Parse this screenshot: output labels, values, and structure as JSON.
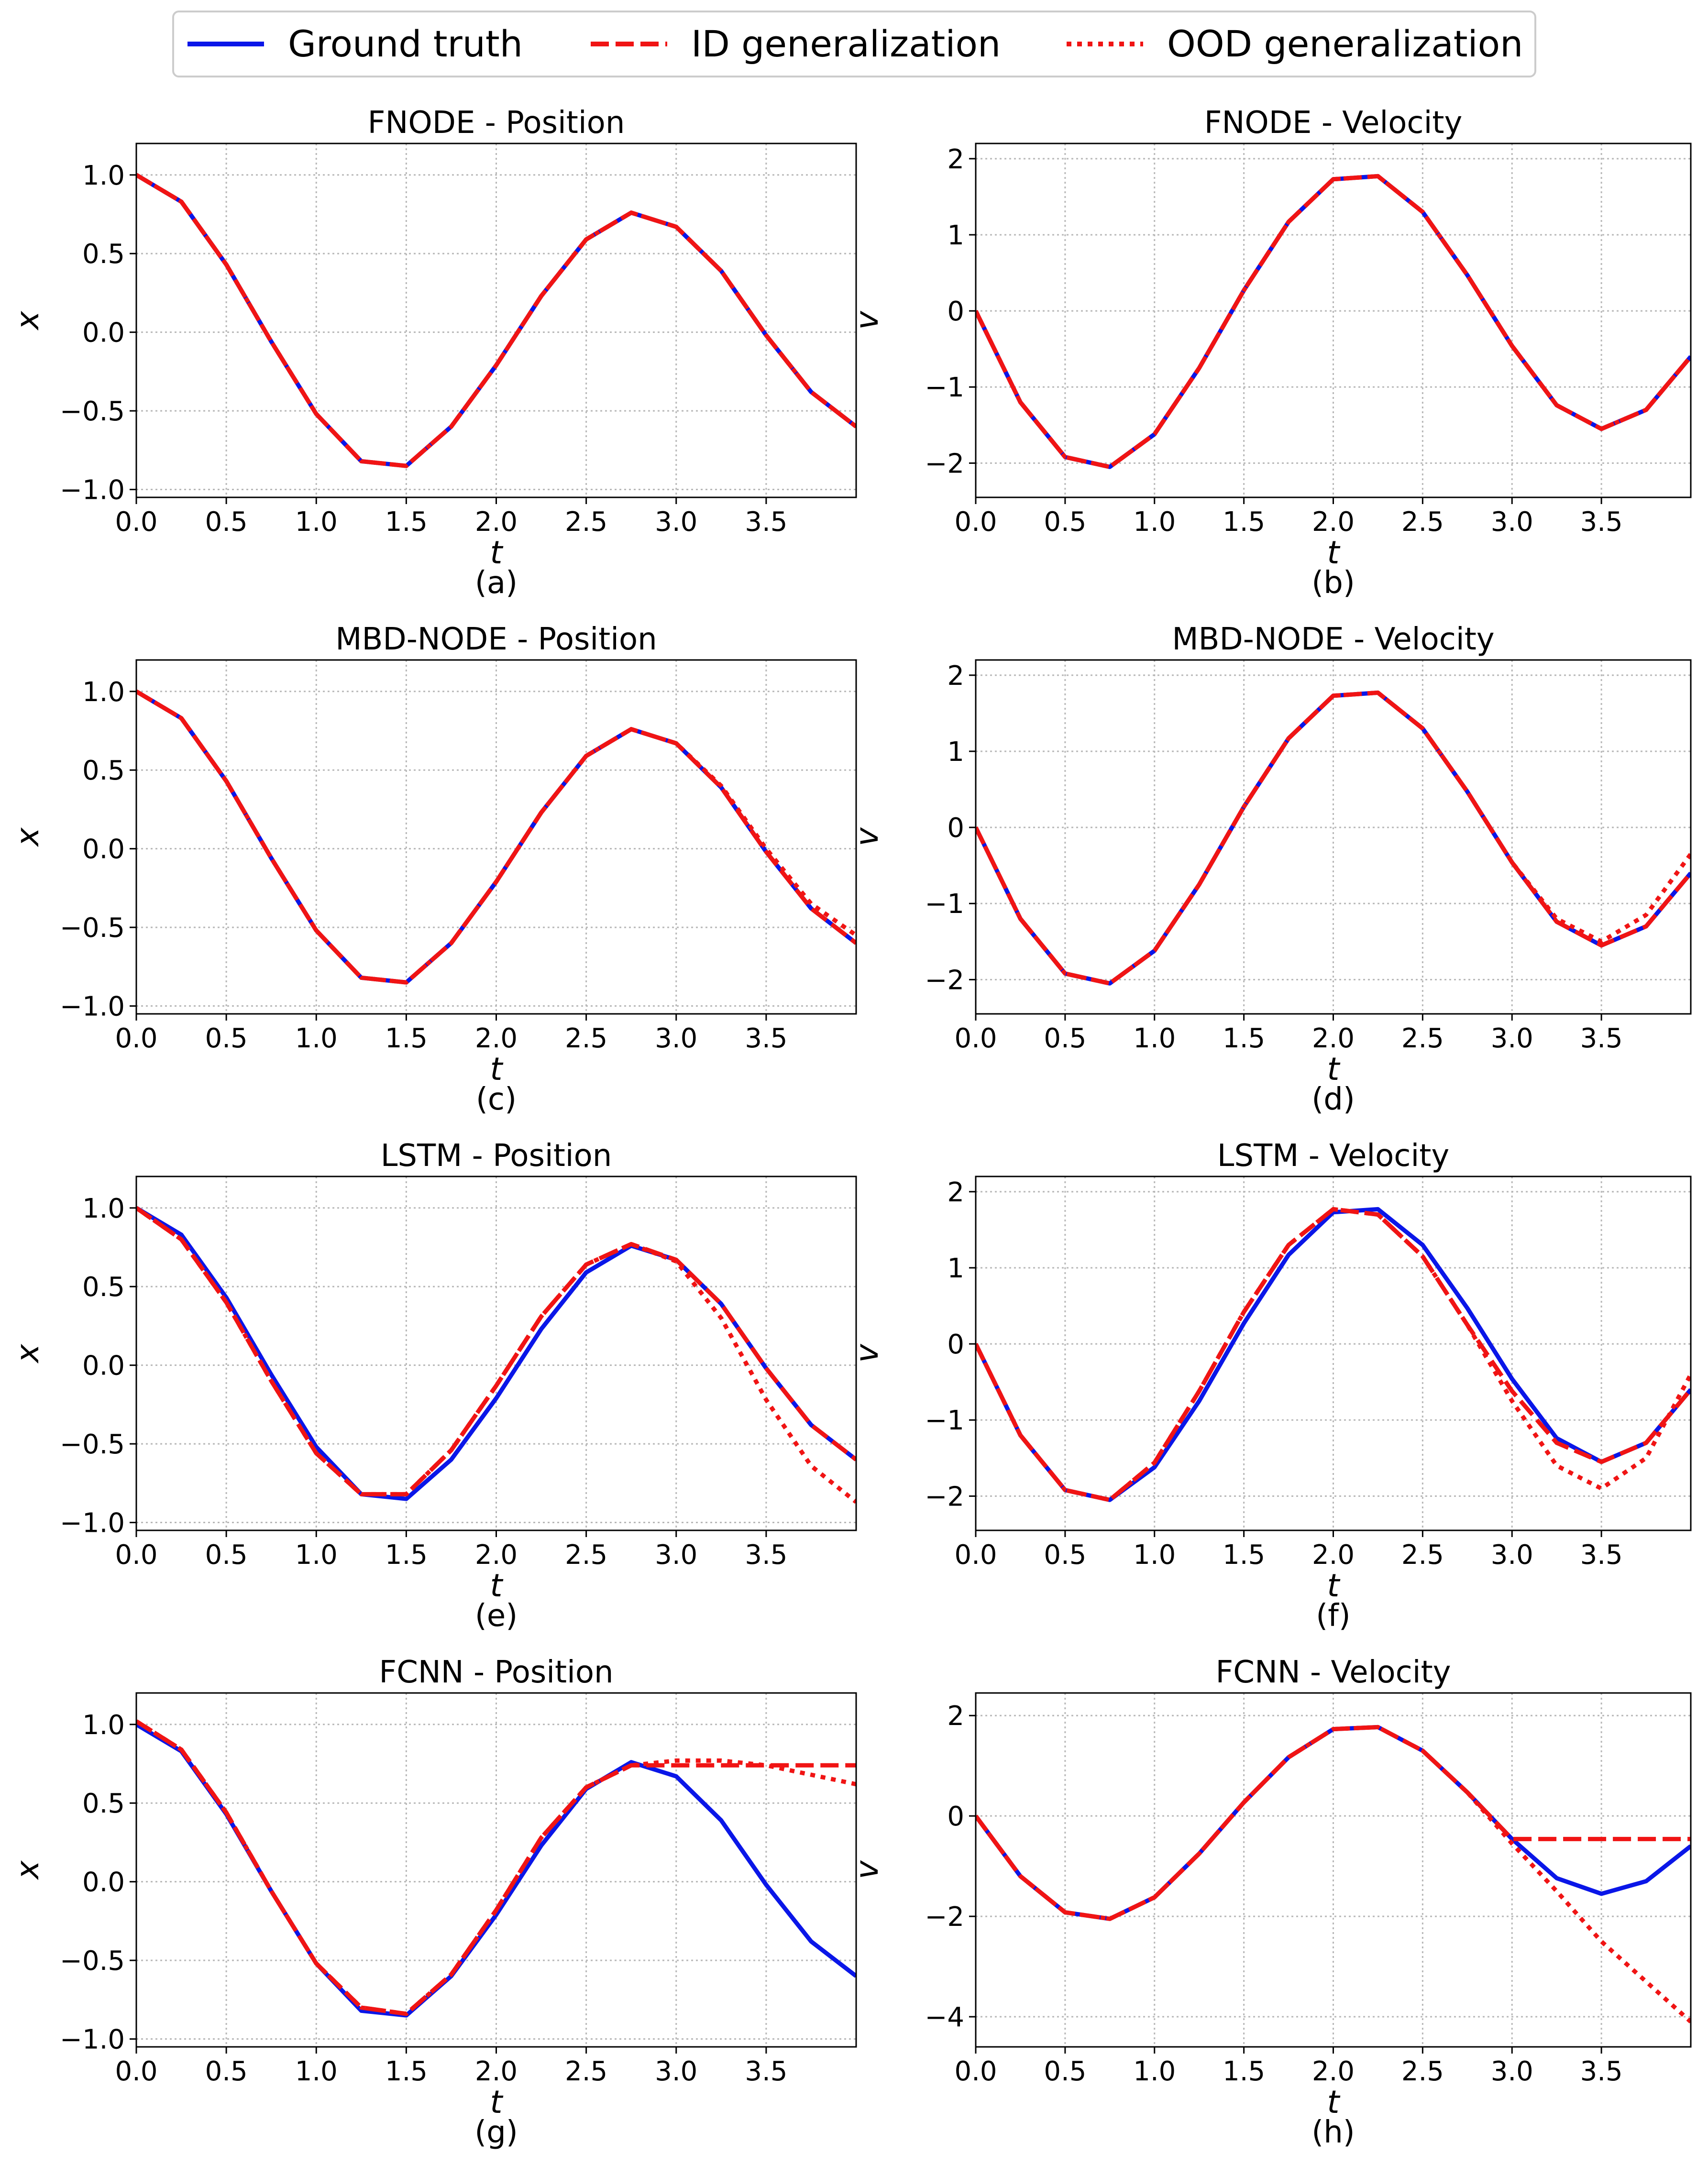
{
  "legend": {
    "ground_truth": "Ground truth",
    "id": "ID generalization",
    "ood": "OOD generalization"
  },
  "colors": {
    "ground_truth": "#0a16e8",
    "prediction": "#f01414",
    "grid": "#b8b8b8"
  },
  "chart_data": [
    {
      "type": "line",
      "title": "FNODE - Position",
      "caption": "(a)",
      "xlabel": "t",
      "ylabel": "x",
      "xlim": [
        0,
        4
      ],
      "ylim": [
        -1.05,
        1.2
      ],
      "xticks": [
        0,
        0.5,
        1,
        1.5,
        2,
        2.5,
        3,
        3.5
      ],
      "yticks": [
        -1,
        -0.5,
        0,
        0.5,
        1
      ],
      "xtick_labels": [
        "0.0",
        "0.5",
        "1.0",
        "1.5",
        "2.0",
        "2.5",
        "3.0",
        "3.5"
      ],
      "ytick_labels": [
        "−1.0",
        "−0.5",
        "0.0",
        "0.5",
        "1.0"
      ],
      "x": [
        0,
        0.25,
        0.5,
        0.75,
        1,
        1.25,
        1.5,
        1.75,
        2,
        2.25,
        2.5,
        2.75,
        3,
        3.25,
        3.5,
        3.75,
        4
      ],
      "series": [
        {
          "name": "Ground truth",
          "style": "solid",
          "values": [
            1.0,
            0.83,
            0.43,
            -0.06,
            -0.52,
            -0.82,
            -0.85,
            -0.6,
            -0.21,
            0.23,
            0.59,
            0.76,
            0.67,
            0.39,
            -0.02,
            -0.38,
            -0.6
          ]
        },
        {
          "name": "ID generalization",
          "style": "dashed",
          "values": [
            1.0,
            0.83,
            0.43,
            -0.06,
            -0.52,
            -0.82,
            -0.85,
            -0.6,
            -0.21,
            0.23,
            0.59,
            0.76,
            0.67,
            0.39,
            -0.02,
            -0.38,
            -0.6
          ]
        },
        {
          "name": "OOD generalization",
          "style": "dotted",
          "values": [
            1.0,
            0.83,
            0.43,
            -0.06,
            -0.52,
            -0.82,
            -0.85,
            -0.6,
            -0.21,
            0.23,
            0.59,
            0.76,
            0.67,
            0.39,
            -0.02,
            -0.38,
            -0.6
          ]
        }
      ]
    },
    {
      "type": "line",
      "title": "FNODE - Velocity",
      "caption": "(b)",
      "xlabel": "t",
      "ylabel": "v",
      "xlim": [
        0,
        4
      ],
      "ylim": [
        -2.45,
        2.2
      ],
      "xticks": [
        0,
        0.5,
        1,
        1.5,
        2,
        2.5,
        3,
        3.5
      ],
      "yticks": [
        -2,
        -1,
        0,
        1,
        2
      ],
      "xtick_labels": [
        "0.0",
        "0.5",
        "1.0",
        "1.5",
        "2.0",
        "2.5",
        "3.0",
        "3.5"
      ],
      "ytick_labels": [
        "−2",
        "−1",
        "0",
        "1",
        "2"
      ],
      "x": [
        0,
        0.25,
        0.5,
        0.75,
        1,
        1.25,
        1.5,
        1.75,
        2,
        2.25,
        2.5,
        2.75,
        3,
        3.25,
        3.5,
        3.75,
        4
      ],
      "series": [
        {
          "name": "Ground truth",
          "style": "solid",
          "values": [
            0.0,
            -1.2,
            -1.92,
            -2.05,
            -1.62,
            -0.75,
            0.27,
            1.17,
            1.73,
            1.77,
            1.3,
            0.47,
            -0.46,
            -1.24,
            -1.55,
            -1.3,
            -0.6
          ]
        },
        {
          "name": "ID generalization",
          "style": "dashed",
          "values": [
            0.0,
            -1.2,
            -1.92,
            -2.05,
            -1.62,
            -0.75,
            0.27,
            1.17,
            1.73,
            1.77,
            1.3,
            0.47,
            -0.46,
            -1.24,
            -1.55,
            -1.3,
            -0.6
          ]
        },
        {
          "name": "OOD generalization",
          "style": "dotted",
          "values": [
            0.0,
            -1.2,
            -1.92,
            -2.05,
            -1.62,
            -0.75,
            0.27,
            1.17,
            1.73,
            1.77,
            1.3,
            0.47,
            -0.46,
            -1.24,
            -1.55,
            -1.3,
            -0.6
          ]
        }
      ]
    },
    {
      "type": "line",
      "title": "MBD-NODE - Position",
      "caption": "(c)",
      "xlabel": "t",
      "ylabel": "x",
      "xlim": [
        0,
        4
      ],
      "ylim": [
        -1.05,
        1.2
      ],
      "xticks": [
        0,
        0.5,
        1,
        1.5,
        2,
        2.5,
        3,
        3.5
      ],
      "yticks": [
        -1,
        -0.5,
        0,
        0.5,
        1
      ],
      "xtick_labels": [
        "0.0",
        "0.5",
        "1.0",
        "1.5",
        "2.0",
        "2.5",
        "3.0",
        "3.5"
      ],
      "ytick_labels": [
        "−1.0",
        "−0.5",
        "0.0",
        "0.5",
        "1.0"
      ],
      "x": [
        0,
        0.25,
        0.5,
        0.75,
        1,
        1.25,
        1.5,
        1.75,
        2,
        2.25,
        2.5,
        2.75,
        3,
        3.25,
        3.5,
        3.75,
        4
      ],
      "series": [
        {
          "name": "Ground truth",
          "style": "solid",
          "values": [
            1.0,
            0.83,
            0.43,
            -0.06,
            -0.52,
            -0.82,
            -0.85,
            -0.6,
            -0.21,
            0.23,
            0.59,
            0.76,
            0.67,
            0.39,
            -0.02,
            -0.38,
            -0.6
          ]
        },
        {
          "name": "ID generalization",
          "style": "dashed",
          "values": [
            1.0,
            0.83,
            0.43,
            -0.06,
            -0.52,
            -0.82,
            -0.85,
            -0.6,
            -0.21,
            0.23,
            0.59,
            0.76,
            0.67,
            0.39,
            -0.02,
            -0.38,
            -0.6
          ]
        },
        {
          "name": "OOD generalization",
          "style": "dotted",
          "values": [
            1.0,
            0.83,
            0.43,
            -0.06,
            -0.52,
            -0.82,
            -0.85,
            -0.6,
            -0.21,
            0.23,
            0.59,
            0.76,
            0.67,
            0.4,
            0.0,
            -0.35,
            -0.55
          ]
        }
      ]
    },
    {
      "type": "line",
      "title": "MBD-NODE - Velocity",
      "caption": "(d)",
      "xlabel": "t",
      "ylabel": "v",
      "xlim": [
        0,
        4
      ],
      "ylim": [
        -2.45,
        2.2
      ],
      "xticks": [
        0,
        0.5,
        1,
        1.5,
        2,
        2.5,
        3,
        3.5
      ],
      "yticks": [
        -2,
        -1,
        0,
        1,
        2
      ],
      "xtick_labels": [
        "0.0",
        "0.5",
        "1.0",
        "1.5",
        "2.0",
        "2.5",
        "3.0",
        "3.5"
      ],
      "ytick_labels": [
        "−2",
        "−1",
        "0",
        "1",
        "2"
      ],
      "x": [
        0,
        0.25,
        0.5,
        0.75,
        1,
        1.25,
        1.5,
        1.75,
        2,
        2.25,
        2.5,
        2.75,
        3,
        3.25,
        3.5,
        3.75,
        4
      ],
      "series": [
        {
          "name": "Ground truth",
          "style": "solid",
          "values": [
            0.0,
            -1.2,
            -1.92,
            -2.05,
            -1.62,
            -0.75,
            0.27,
            1.17,
            1.73,
            1.77,
            1.3,
            0.47,
            -0.46,
            -1.24,
            -1.55,
            -1.3,
            -0.6
          ]
        },
        {
          "name": "ID generalization",
          "style": "dashed",
          "values": [
            0.0,
            -1.2,
            -1.92,
            -2.05,
            -1.62,
            -0.75,
            0.27,
            1.17,
            1.73,
            1.77,
            1.3,
            0.47,
            -0.46,
            -1.24,
            -1.55,
            -1.3,
            -0.6
          ]
        },
        {
          "name": "OOD generalization",
          "style": "dotted",
          "values": [
            0.0,
            -1.2,
            -1.92,
            -2.05,
            -1.62,
            -0.75,
            0.27,
            1.17,
            1.73,
            1.77,
            1.3,
            0.47,
            -0.46,
            -1.2,
            -1.5,
            -1.15,
            -0.35
          ]
        }
      ]
    },
    {
      "type": "line",
      "title": "LSTM - Position",
      "caption": "(e)",
      "xlabel": "t",
      "ylabel": "x",
      "xlim": [
        0,
        4
      ],
      "ylim": [
        -1.05,
        1.2
      ],
      "xticks": [
        0,
        0.5,
        1,
        1.5,
        2,
        2.5,
        3,
        3.5
      ],
      "yticks": [
        -1,
        -0.5,
        0,
        0.5,
        1
      ],
      "xtick_labels": [
        "0.0",
        "0.5",
        "1.0",
        "1.5",
        "2.0",
        "2.5",
        "3.0",
        "3.5"
      ],
      "ytick_labels": [
        "−1.0",
        "−0.5",
        "0.0",
        "0.5",
        "1.0"
      ],
      "x": [
        0,
        0.25,
        0.5,
        0.75,
        1,
        1.25,
        1.5,
        1.75,
        2,
        2.25,
        2.5,
        2.75,
        3,
        3.25,
        3.5,
        3.75,
        4
      ],
      "series": [
        {
          "name": "Ground truth",
          "style": "solid",
          "values": [
            1.0,
            0.83,
            0.43,
            -0.06,
            -0.52,
            -0.82,
            -0.85,
            -0.6,
            -0.21,
            0.23,
            0.59,
            0.76,
            0.67,
            0.39,
            -0.02,
            -0.38,
            -0.6
          ]
        },
        {
          "name": "ID generalization",
          "style": "dashed",
          "values": [
            1.0,
            0.8,
            0.4,
            -0.1,
            -0.56,
            -0.82,
            -0.82,
            -0.54,
            -0.13,
            0.31,
            0.64,
            0.77,
            0.67,
            0.39,
            -0.02,
            -0.38,
            -0.6
          ]
        },
        {
          "name": "OOD generalization",
          "style": "dotted",
          "values": [
            1.0,
            0.8,
            0.4,
            -0.1,
            -0.56,
            -0.82,
            -0.82,
            -0.54,
            -0.13,
            0.31,
            0.64,
            0.77,
            0.66,
            0.3,
            -0.22,
            -0.64,
            -0.87
          ]
        }
      ]
    },
    {
      "type": "line",
      "title": "LSTM - Velocity",
      "caption": "(f)",
      "xlabel": "t",
      "ylabel": "v",
      "xlim": [
        0,
        4
      ],
      "ylim": [
        -2.45,
        2.2
      ],
      "xticks": [
        0,
        0.5,
        1,
        1.5,
        2,
        2.5,
        3,
        3.5
      ],
      "yticks": [
        -2,
        -1,
        0,
        1,
        2
      ],
      "xtick_labels": [
        "0.0",
        "0.5",
        "1.0",
        "1.5",
        "2.0",
        "2.5",
        "3.0",
        "3.5"
      ],
      "ytick_labels": [
        "−2",
        "−1",
        "0",
        "1",
        "2"
      ],
      "x": [
        0,
        0.25,
        0.5,
        0.75,
        1,
        1.25,
        1.5,
        1.75,
        2,
        2.25,
        2.5,
        2.75,
        3,
        3.25,
        3.5,
        3.75,
        4
      ],
      "series": [
        {
          "name": "Ground truth",
          "style": "solid",
          "values": [
            0.0,
            -1.2,
            -1.92,
            -2.05,
            -1.62,
            -0.75,
            0.27,
            1.17,
            1.73,
            1.77,
            1.3,
            0.47,
            -0.46,
            -1.24,
            -1.55,
            -1.3,
            -0.6
          ]
        },
        {
          "name": "ID generalization",
          "style": "dashed",
          "values": [
            0.0,
            -1.2,
            -1.92,
            -2.05,
            -1.56,
            -0.62,
            0.42,
            1.3,
            1.77,
            1.7,
            1.15,
            0.25,
            -0.62,
            -1.3,
            -1.55,
            -1.3,
            -0.6
          ]
        },
        {
          "name": "OOD generalization",
          "style": "dotted",
          "values": [
            0.0,
            -1.2,
            -1.92,
            -2.05,
            -1.56,
            -0.62,
            0.42,
            1.3,
            1.77,
            1.7,
            1.15,
            0.25,
            -0.75,
            -1.6,
            -1.9,
            -1.5,
            -0.4
          ]
        }
      ]
    },
    {
      "type": "line",
      "title": "FCNN - Position",
      "caption": "(g)",
      "xlabel": "t",
      "ylabel": "x",
      "xlim": [
        0,
        4
      ],
      "ylim": [
        -1.05,
        1.2
      ],
      "xticks": [
        0,
        0.5,
        1,
        1.5,
        2,
        2.5,
        3,
        3.5
      ],
      "yticks": [
        -1,
        -0.5,
        0,
        0.5,
        1
      ],
      "xtick_labels": [
        "0.0",
        "0.5",
        "1.0",
        "1.5",
        "2.0",
        "2.5",
        "3.0",
        "3.5"
      ],
      "ytick_labels": [
        "−1.0",
        "−0.5",
        "0.0",
        "0.5",
        "1.0"
      ],
      "x": [
        0,
        0.25,
        0.5,
        0.75,
        1,
        1.25,
        1.5,
        1.75,
        2,
        2.25,
        2.5,
        2.75,
        3,
        3.25,
        3.5,
        3.75,
        4
      ],
      "series": [
        {
          "name": "Ground truth",
          "style": "solid",
          "values": [
            1.0,
            0.83,
            0.43,
            -0.06,
            -0.52,
            -0.82,
            -0.85,
            -0.6,
            -0.21,
            0.23,
            0.59,
            0.76,
            0.67,
            0.39,
            -0.02,
            -0.38,
            -0.6
          ]
        },
        {
          "name": "ID generalization",
          "style": "dashed",
          "values": [
            1.02,
            0.84,
            0.44,
            -0.06,
            -0.52,
            -0.8,
            -0.84,
            -0.59,
            -0.18,
            0.28,
            0.6,
            0.74,
            0.74,
            0.74,
            0.74,
            0.74,
            0.74
          ]
        },
        {
          "name": "OOD generalization",
          "style": "dotted",
          "values": [
            1.02,
            0.84,
            0.44,
            -0.06,
            -0.52,
            -0.8,
            -0.84,
            -0.59,
            -0.18,
            0.28,
            0.6,
            0.74,
            0.77,
            0.77,
            0.74,
            0.68,
            0.62
          ]
        }
      ]
    },
    {
      "type": "line",
      "title": "FCNN - Velocity",
      "caption": "(h)",
      "xlabel": "t",
      "ylabel": "v",
      "xlim": [
        0,
        4
      ],
      "ylim": [
        -4.6,
        2.45
      ],
      "xticks": [
        0,
        0.5,
        1,
        1.5,
        2,
        2.5,
        3,
        3.5
      ],
      "yticks": [
        -4,
        -2,
        0,
        2
      ],
      "xtick_labels": [
        "0.0",
        "0.5",
        "1.0",
        "1.5",
        "2.0",
        "2.5",
        "3.0",
        "3.5"
      ],
      "ytick_labels": [
        "−4",
        "−2",
        "0",
        "2"
      ],
      "x": [
        0,
        0.25,
        0.5,
        0.75,
        1,
        1.25,
        1.5,
        1.75,
        2,
        2.25,
        2.5,
        2.75,
        3,
        3.25,
        3.5,
        3.75,
        4
      ],
      "series": [
        {
          "name": "Ground truth",
          "style": "solid",
          "values": [
            0.0,
            -1.2,
            -1.92,
            -2.05,
            -1.62,
            -0.75,
            0.27,
            1.17,
            1.73,
            1.77,
            1.3,
            0.47,
            -0.46,
            -1.24,
            -1.55,
            -1.3,
            -0.6
          ]
        },
        {
          "name": "ID generalization",
          "style": "dashed",
          "values": [
            0.0,
            -1.2,
            -1.92,
            -2.05,
            -1.62,
            -0.75,
            0.27,
            1.17,
            1.73,
            1.77,
            1.3,
            0.47,
            -0.46,
            -0.46,
            -0.46,
            -0.46,
            -0.46
          ]
        },
        {
          "name": "OOD generalization",
          "style": "dotted",
          "values": [
            0.0,
            -1.2,
            -1.92,
            -2.05,
            -1.62,
            -0.75,
            0.27,
            1.17,
            1.73,
            1.77,
            1.3,
            0.47,
            -0.55,
            -1.5,
            -2.5,
            -3.3,
            -4.1
          ]
        }
      ]
    }
  ]
}
